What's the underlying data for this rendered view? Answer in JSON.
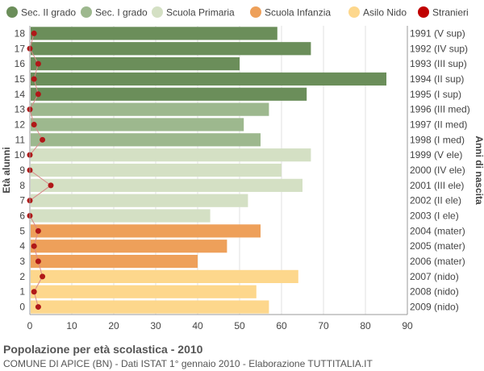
{
  "chart_data": {
    "type": "bar",
    "orientation": "horizontal",
    "ylabel": "Età alunni",
    "ylabel_right": "Anni di nascita",
    "xlim": [
      0,
      90
    ],
    "x_ticks": [
      0,
      10,
      20,
      30,
      40,
      50,
      60,
      70,
      80,
      90
    ],
    "grid": true,
    "legend_position": "top",
    "legend": [
      {
        "name": "Sec. II grado",
        "color": "#6b8e5a"
      },
      {
        "name": "Sec. I grado",
        "color": "#9db88e"
      },
      {
        "name": "Scuola Primaria",
        "color": "#d4e0c4"
      },
      {
        "name": "Scuola Infanzia",
        "color": "#eea05a"
      },
      {
        "name": "Asilo Nido",
        "color": "#fdd78c"
      },
      {
        "name": "Stranieri",
        "color": "#c00000"
      }
    ],
    "rows": [
      {
        "age": "18",
        "birth": "1991 (V sup)",
        "value": 59,
        "stranieri": 1,
        "group": 0
      },
      {
        "age": "17",
        "birth": "1992 (IV sup)",
        "value": 67,
        "stranieri": 0,
        "group": 0
      },
      {
        "age": "16",
        "birth": "1993 (III sup)",
        "value": 50,
        "stranieri": 2,
        "group": 0
      },
      {
        "age": "15",
        "birth": "1994 (II sup)",
        "value": 85,
        "stranieri": 1,
        "group": 0
      },
      {
        "age": "14",
        "birth": "1995 (I sup)",
        "value": 66,
        "stranieri": 2,
        "group": 0
      },
      {
        "age": "13",
        "birth": "1996 (III med)",
        "value": 57,
        "stranieri": 0,
        "group": 1
      },
      {
        "age": "12",
        "birth": "1997 (II med)",
        "value": 51,
        "stranieri": 1,
        "group": 1
      },
      {
        "age": "11",
        "birth": "1998 (I med)",
        "value": 55,
        "stranieri": 3,
        "group": 1
      },
      {
        "age": "10",
        "birth": "1999 (V ele)",
        "value": 67,
        "stranieri": 0,
        "group": 2
      },
      {
        "age": "9",
        "birth": "2000 (IV ele)",
        "value": 60,
        "stranieri": 0,
        "group": 2
      },
      {
        "age": "8",
        "birth": "2001 (III ele)",
        "value": 65,
        "stranieri": 5,
        "group": 2
      },
      {
        "age": "7",
        "birth": "2002 (II ele)",
        "value": 52,
        "stranieri": 0,
        "group": 2
      },
      {
        "age": "6",
        "birth": "2003 (I ele)",
        "value": 43,
        "stranieri": 0,
        "group": 2
      },
      {
        "age": "5",
        "birth": "2004 (mater)",
        "value": 55,
        "stranieri": 2,
        "group": 3
      },
      {
        "age": "4",
        "birth": "2005 (mater)",
        "value": 47,
        "stranieri": 1,
        "group": 3
      },
      {
        "age": "3",
        "birth": "2006 (mater)",
        "value": 40,
        "stranieri": 2,
        "group": 3
      },
      {
        "age": "2",
        "birth": "2007 (nido)",
        "value": 64,
        "stranieri": 3,
        "group": 4
      },
      {
        "age": "1",
        "birth": "2008 (nido)",
        "value": 54,
        "stranieri": 1,
        "group": 4
      },
      {
        "age": "0",
        "birth": "2009 (nido)",
        "value": 57,
        "stranieri": 2,
        "group": 4
      }
    ]
  },
  "footer": {
    "title": "Popolazione per età scolastica - 2010",
    "subtitle": "COMUNE DI APICE (BN) - Dati ISTAT 1° gennaio 2010 - Elaborazione TUTTITALIA.IT"
  }
}
